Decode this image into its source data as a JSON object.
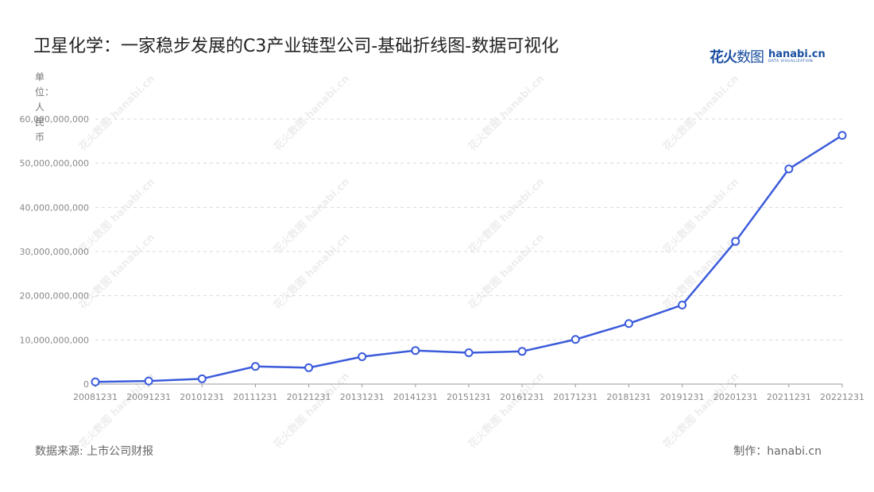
{
  "title": "卫星化学：一家稳步发展的C3产业链型公司-基础折线图-数据可视化",
  "logo": {
    "cn_bold": "花火",
    "cn_thin": "数图",
    "en": "hanabi.cn",
    "en_sub": "DATA VISUALIZATION"
  },
  "unit_label": "单位：人民币",
  "footer": {
    "source": "数据来源: 上市公司财报",
    "credit": "制作：hanabi.cn"
  },
  "watermark": "花火数图 hanabi.cn",
  "chart_data": {
    "type": "line",
    "x": [
      "20081231",
      "20091231",
      "20101231",
      "20111231",
      "20121231",
      "20131231",
      "20141231",
      "20151231",
      "20161231",
      "20171231",
      "20181231",
      "20191231",
      "20201231",
      "20211231",
      "20221231"
    ],
    "values": [
      500000000,
      700000000,
      1200000000,
      4000000000,
      3700000000,
      6200000000,
      7600000000,
      7100000000,
      7400000000,
      10100000000,
      13700000000,
      17900000000,
      32300000000,
      48700000000,
      56300000000
    ],
    "ylim": [
      0,
      60000000000
    ],
    "yticks": [
      0,
      10000000000,
      20000000000,
      30000000000,
      40000000000,
      50000000000,
      60000000000
    ],
    "ytick_labels": [
      "0",
      "10,000,000,000",
      "20,000,000,000",
      "30,000,000,000",
      "40,000,000,000",
      "50,000,000,000",
      "60,000,000,000"
    ],
    "line_color": "#3b5bdb",
    "grid": "horizontal-dashed",
    "legend": "none"
  }
}
